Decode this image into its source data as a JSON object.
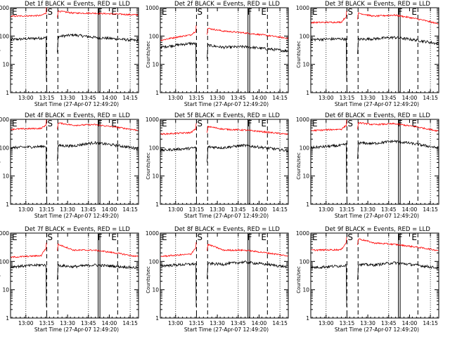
{
  "figure": {
    "x_label": "Start Time (27-Apr-07 12:49:20)",
    "y_label": "Counts/sec",
    "x_tick_labels": [
      "13:00",
      "13:15",
      "13:30",
      "13:45",
      "14:00",
      "14:15"
    ],
    "y_tick_labels": [
      "1",
      "10",
      "100",
      "1000"
    ],
    "marker_labels": [
      "E",
      "S",
      "F",
      "E"
    ],
    "colors": {
      "events": "#000000",
      "lld": "#ff0000"
    }
  },
  "chart_data": [
    {
      "type": "line",
      "title": "Det 1f BLACK = Events, RED = LLD",
      "xlabel": "Start Time (27-Apr-07 12:49:20)",
      "ylabel": "Counts/sec",
      "xlim_min": [
        0,
        92
      ],
      "ylim": [
        1,
        1000
      ],
      "yscale": "log",
      "series": [
        {
          "name": "Events",
          "color": "#000000",
          "values_min": [
            0,
            22,
            30,
            45,
            60,
            90
          ],
          "values": [
            75,
            85,
            90,
            110,
            90,
            70
          ]
        },
        {
          "name": "LLD",
          "color": "#ff0000",
          "values_min": [
            0,
            22,
            30,
            45,
            60,
            90
          ],
          "values": [
            500,
            530,
            800,
            650,
            640,
            560
          ]
        }
      ]
    },
    {
      "type": "line",
      "title": "Det 2f BLACK = Events, RED = LLD",
      "xlabel": "Start Time (27-Apr-07 12:49:20)",
      "ylabel": "Counts/sec",
      "xlim_min": [
        0,
        92
      ],
      "ylim": [
        1,
        1000
      ],
      "yscale": "log",
      "series": [
        {
          "name": "Events",
          "color": "#000000",
          "values_min": [
            0,
            22,
            30,
            45,
            60,
            90
          ],
          "values": [
            40,
            55,
            50,
            40,
            42,
            30
          ]
        },
        {
          "name": "LLD",
          "color": "#ff0000",
          "values_min": [
            0,
            22,
            30,
            45,
            60,
            90
          ],
          "values": [
            70,
            110,
            200,
            150,
            130,
            85
          ]
        }
      ]
    },
    {
      "type": "line",
      "title": "Det 3f BLACK = Events, RED = LLD",
      "xlabel": "Start Time (27-Apr-07 12:49:20)",
      "ylabel": "Counts/sec",
      "xlim_min": [
        0,
        92
      ],
      "ylim": [
        1,
        1000
      ],
      "yscale": "log",
      "series": [
        {
          "name": "Events",
          "color": "#000000",
          "values_min": [
            0,
            22,
            30,
            45,
            60,
            90
          ],
          "values": [
            75,
            80,
            75,
            80,
            90,
            55
          ]
        },
        {
          "name": "LLD",
          "color": "#ff0000",
          "values_min": [
            0,
            22,
            30,
            45,
            60,
            90
          ],
          "values": [
            300,
            310,
            700,
            500,
            550,
            280
          ]
        }
      ]
    },
    {
      "type": "line",
      "title": "Det 4f BLACK = Events, RED = LLD",
      "xlabel": "Start Time (27-Apr-07 12:49:20)",
      "ylabel": "Counts/sec",
      "xlim_min": [
        0,
        92
      ],
      "ylim": [
        1,
        1000
      ],
      "yscale": "log",
      "series": [
        {
          "name": "Events",
          "color": "#000000",
          "values_min": [
            0,
            22,
            30,
            45,
            60,
            90
          ],
          "values": [
            100,
            110,
            120,
            115,
            150,
            95
          ]
        },
        {
          "name": "LLD",
          "color": "#ff0000",
          "values_min": [
            0,
            22,
            30,
            45,
            60,
            90
          ],
          "values": [
            450,
            480,
            800,
            620,
            650,
            420
          ]
        }
      ]
    },
    {
      "type": "line",
      "title": "Det 5f BLACK = Events, RED = LLD",
      "xlabel": "Start Time (27-Apr-07 12:49:20)",
      "ylabel": "Counts/sec",
      "xlim_min": [
        0,
        92
      ],
      "ylim": [
        1,
        1000
      ],
      "yscale": "log",
      "series": [
        {
          "name": "Events",
          "color": "#000000",
          "values_min": [
            0,
            22,
            30,
            45,
            60,
            90
          ],
          "values": [
            80,
            95,
            110,
            100,
            120,
            80
          ]
        },
        {
          "name": "LLD",
          "color": "#ff0000",
          "values_min": [
            0,
            22,
            30,
            45,
            60,
            90
          ],
          "values": [
            300,
            340,
            600,
            450,
            420,
            300
          ]
        }
      ]
    },
    {
      "type": "line",
      "title": "Det 6f BLACK = Events, RED = LLD",
      "xlabel": "Start Time (27-Apr-07 12:49:20)",
      "ylabel": "Counts/sec",
      "xlim_min": [
        0,
        92
      ],
      "ylim": [
        1,
        1000
      ],
      "yscale": "log",
      "series": [
        {
          "name": "Events",
          "color": "#000000",
          "values_min": [
            0,
            22,
            30,
            45,
            60,
            90
          ],
          "values": [
            100,
            120,
            150,
            140,
            170,
            100
          ]
        },
        {
          "name": "LLD",
          "color": "#ff0000",
          "values_min": [
            0,
            22,
            30,
            45,
            60,
            90
          ],
          "values": [
            400,
            450,
            800,
            650,
            700,
            400
          ]
        }
      ]
    },
    {
      "type": "line",
      "title": "Det 7f BLACK = Events, RED = LLD",
      "xlabel": "Start Time (27-Apr-07 12:49:20)",
      "ylabel": "Counts/sec",
      "xlim_min": [
        0,
        92
      ],
      "ylim": [
        1,
        1000
      ],
      "yscale": "log",
      "series": [
        {
          "name": "Events",
          "color": "#000000",
          "values_min": [
            0,
            22,
            30,
            45,
            60,
            90
          ],
          "values": [
            65,
            75,
            75,
            65,
            75,
            60
          ]
        },
        {
          "name": "LLD",
          "color": "#ff0000",
          "values_min": [
            0,
            22,
            30,
            45,
            60,
            90
          ],
          "values": [
            140,
            160,
            450,
            250,
            250,
            150
          ]
        }
      ]
    },
    {
      "type": "line",
      "title": "Det 8f BLACK = Events, RED = LLD",
      "xlabel": "Start Time (27-Apr-07 12:49:20)",
      "ylabel": "Counts/sec",
      "xlim_min": [
        0,
        92
      ],
      "ylim": [
        1,
        1000
      ],
      "yscale": "log",
      "series": [
        {
          "name": "Events",
          "color": "#000000",
          "values_min": [
            0,
            22,
            30,
            45,
            60,
            90
          ],
          "values": [
            70,
            80,
            85,
            80,
            95,
            65
          ]
        },
        {
          "name": "LLD",
          "color": "#ff0000",
          "values_min": [
            0,
            22,
            30,
            45,
            60,
            90
          ],
          "values": [
            150,
            180,
            450,
            250,
            250,
            160
          ]
        }
      ]
    },
    {
      "type": "line",
      "title": "Det 9f BLACK = Events, RED = LLD",
      "xlabel": "Start Time (27-Apr-07 12:49:20)",
      "ylabel": "Counts/sec",
      "xlim_min": [
        0,
        92
      ],
      "ylim": [
        1,
        1000
      ],
      "yscale": "log",
      "series": [
        {
          "name": "Events",
          "color": "#000000",
          "values_min": [
            0,
            22,
            30,
            45,
            60,
            90
          ],
          "values": [
            60,
            70,
            80,
            75,
            90,
            60
          ]
        },
        {
          "name": "LLD",
          "color": "#ff0000",
          "values_min": [
            0,
            22,
            30,
            45,
            60,
            90
          ],
          "values": [
            250,
            260,
            700,
            450,
            400,
            250
          ]
        }
      ]
    }
  ]
}
